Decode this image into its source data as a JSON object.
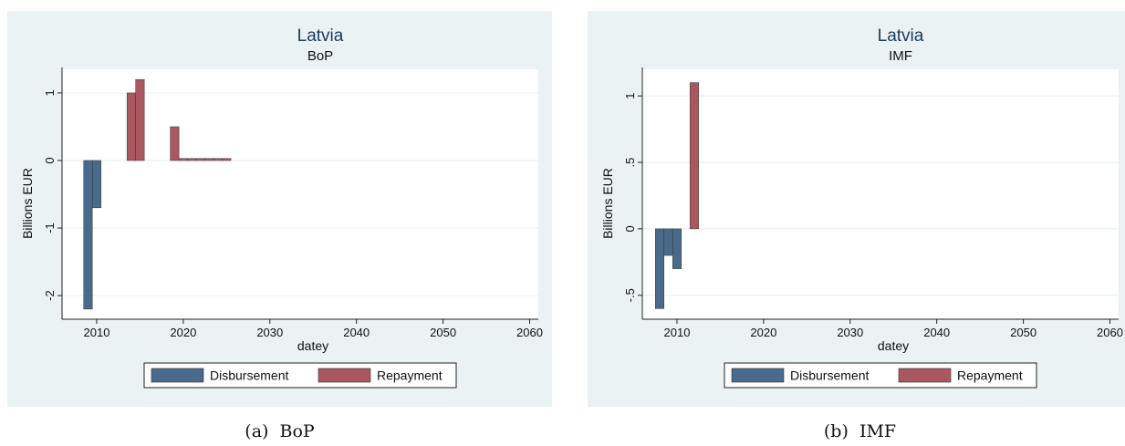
{
  "colors": {
    "disbursement": "#496a8a",
    "repayment": "#a9585f",
    "panel_bg": "#eaf2f3",
    "plot_bg": "#ffffff",
    "grid": "#eaf2f3",
    "title": "#1c3a5e"
  },
  "chart_data": [
    {
      "type": "bar",
      "title": "Latvia",
      "subtitle": "BoP",
      "xlabel": "datey",
      "ylabel": "Billions EUR",
      "xlim": [
        2006,
        2061
      ],
      "ylim": [
        -2.35,
        1.35
      ],
      "xticks": [
        2010,
        2020,
        2030,
        2040,
        2050,
        2060
      ],
      "yticks": [
        -2,
        -1,
        0,
        1
      ],
      "ytick_labels": [
        "-2",
        "-1",
        "0",
        "1"
      ],
      "grid": true,
      "legend_position": "bottom",
      "caption_label": "(a)",
      "caption_text": "BoP",
      "series": [
        {
          "name": "Disbursement",
          "x": [
            2009,
            2010
          ],
          "values": [
            -2.2,
            -0.7
          ]
        },
        {
          "name": "Repayment",
          "x": [
            2014,
            2015,
            2019,
            2020,
            2021,
            2022,
            2023,
            2024,
            2025
          ],
          "values": [
            1.0,
            1.2,
            0.5,
            0.03,
            0.03,
            0.03,
            0.03,
            0.03,
            0.03
          ]
        }
      ]
    },
    {
      "type": "bar",
      "title": "Latvia",
      "subtitle": "IMF",
      "xlabel": "datey",
      "ylabel": "Billions EUR",
      "xlim": [
        2006,
        2061
      ],
      "ylim": [
        -0.68,
        1.2
      ],
      "xticks": [
        2010,
        2020,
        2030,
        2040,
        2050,
        2060
      ],
      "yticks": [
        -0.5,
        0,
        0.5,
        1
      ],
      "ytick_labels": [
        "-.5",
        "0",
        ".5",
        "1"
      ],
      "grid": true,
      "legend_position": "bottom",
      "caption_label": "(b)",
      "caption_text": "IMF",
      "series": [
        {
          "name": "Disbursement",
          "x": [
            2008,
            2009,
            2010
          ],
          "values": [
            -0.6,
            -0.2,
            -0.3
          ]
        },
        {
          "name": "Repayment",
          "x": [
            2012
          ],
          "values": [
            1.1
          ]
        }
      ]
    }
  ]
}
